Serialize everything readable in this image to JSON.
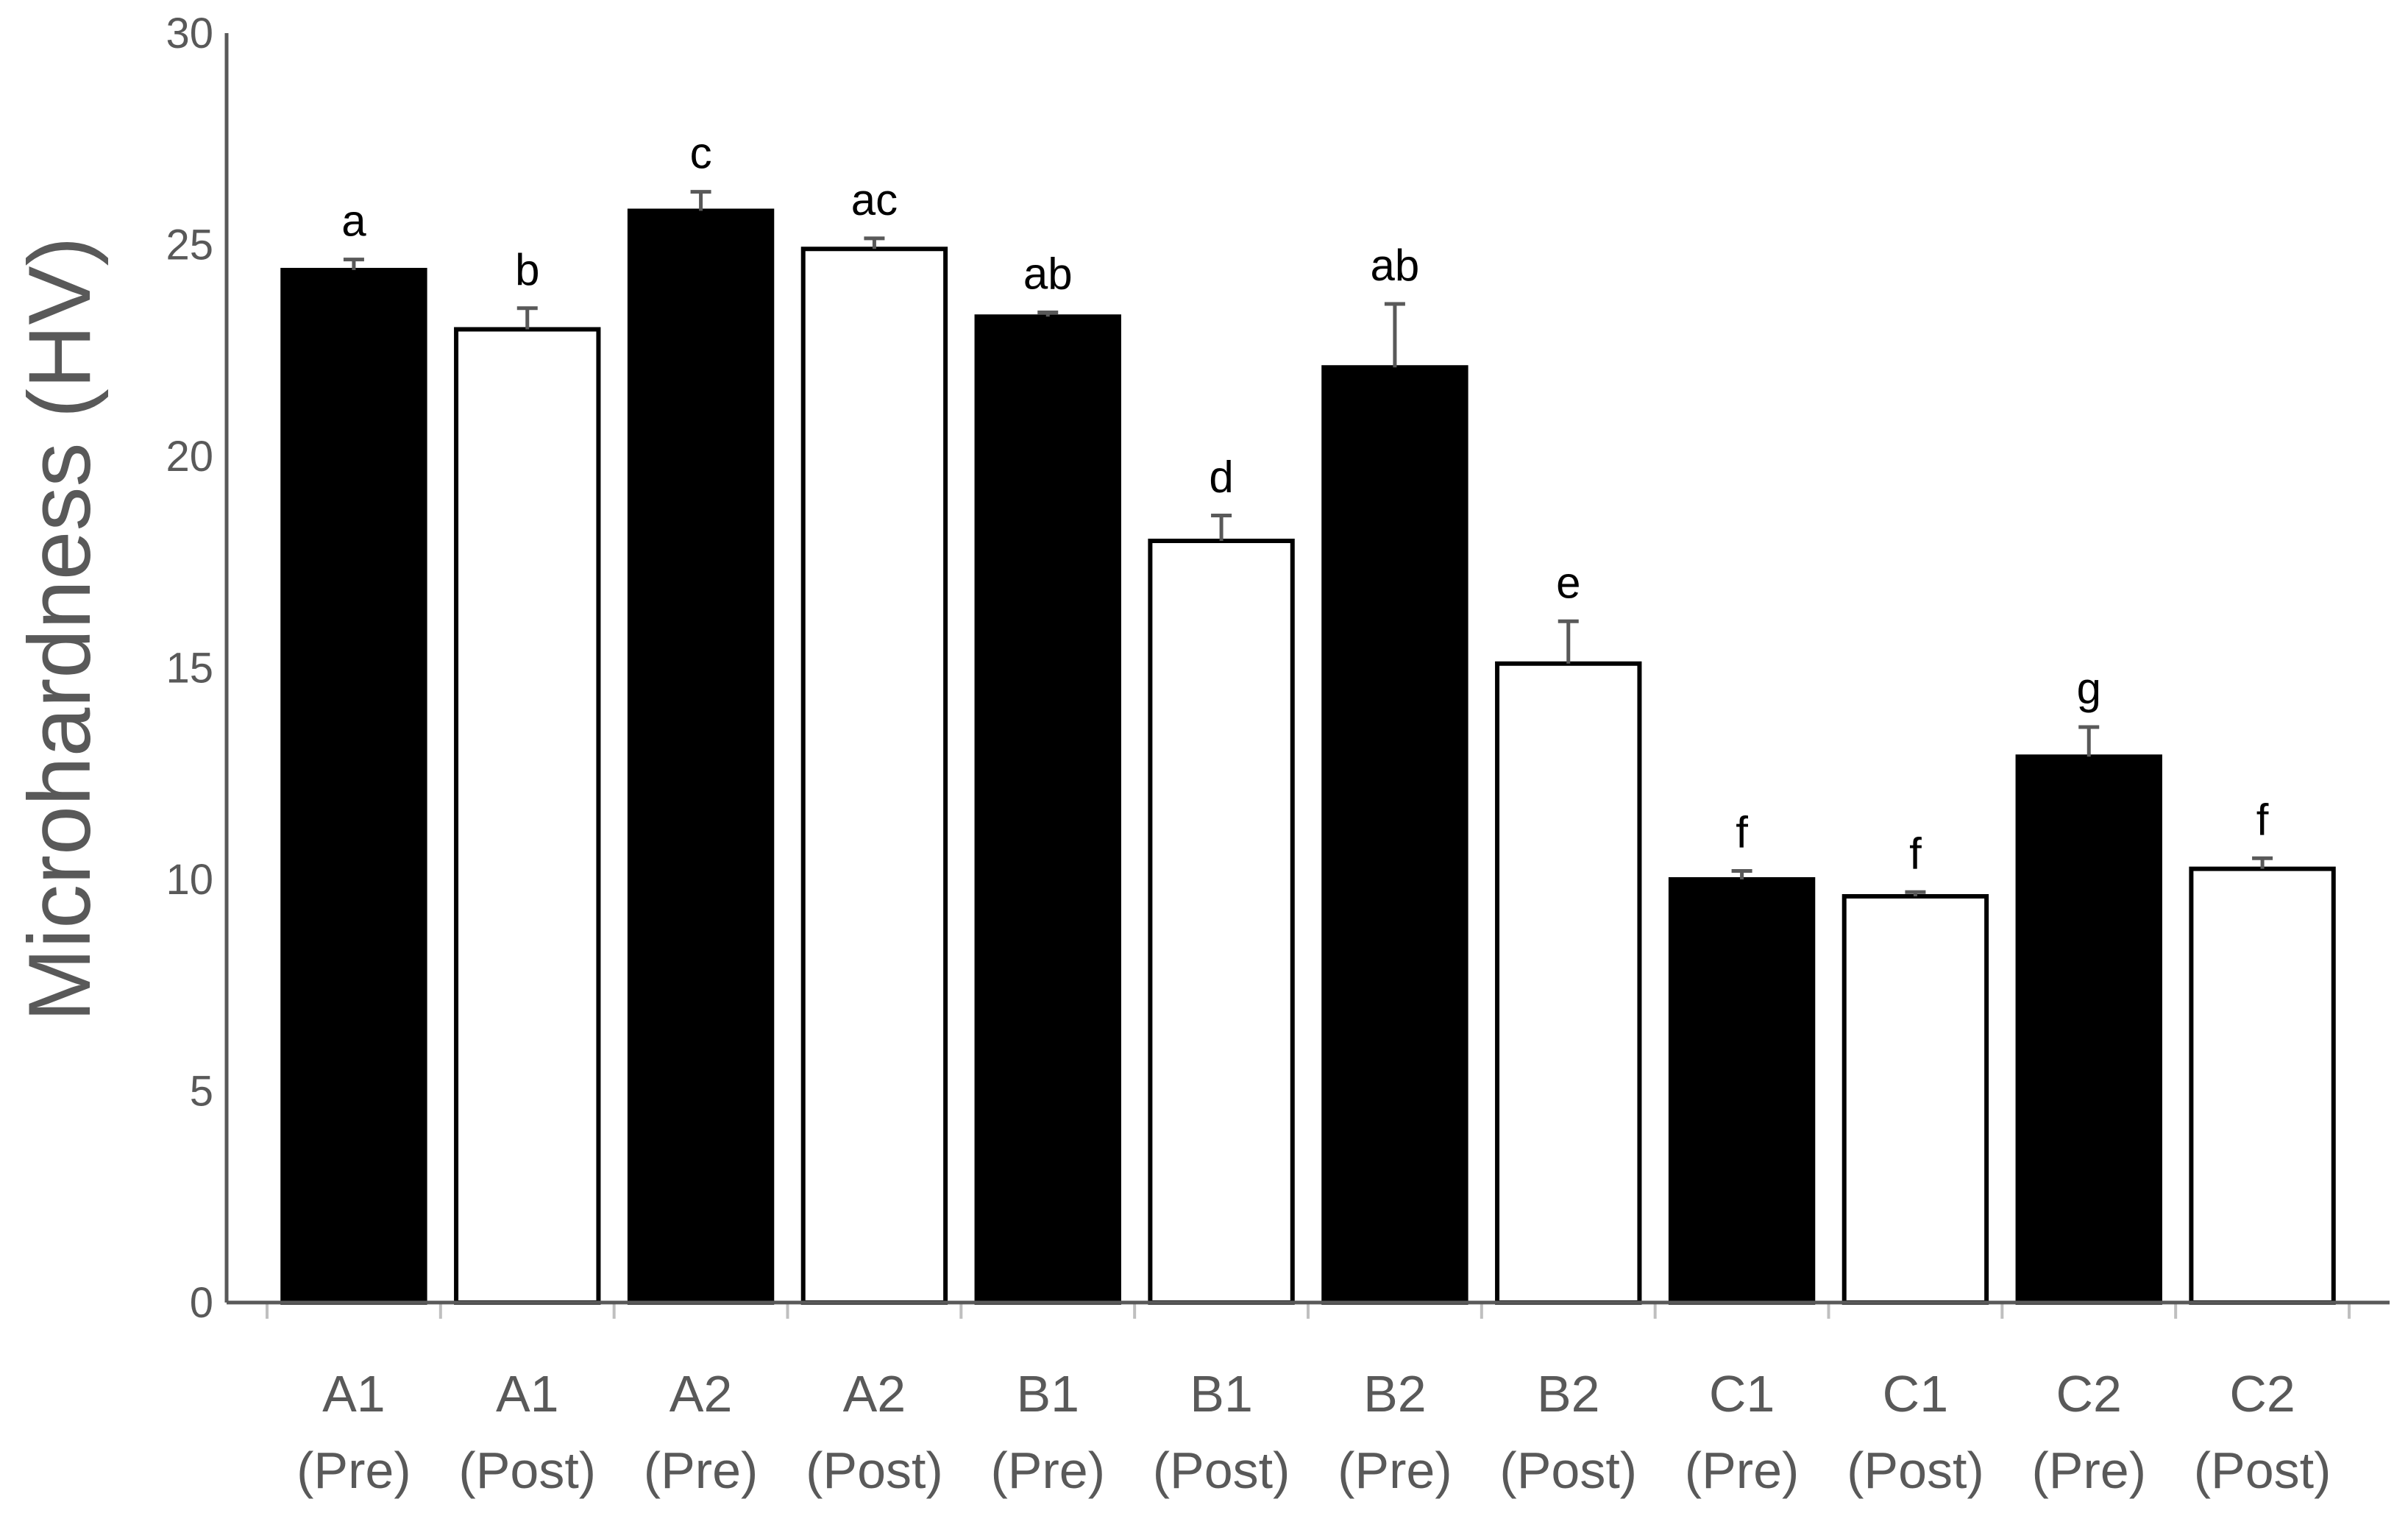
{
  "chart_data": {
    "type": "bar",
    "ylabel": "Microhardness (HV)",
    "xlabel": "",
    "ylim": [
      0,
      30
    ],
    "yticks": [
      0,
      5,
      10,
      15,
      20,
      25,
      30
    ],
    "grid": false,
    "legend": "none",
    "categories": [
      {
        "line1": "A1",
        "line2": "(Pre)"
      },
      {
        "line1": "A1",
        "line2": "(Post)"
      },
      {
        "line1": "A2",
        "line2": "(Pre)"
      },
      {
        "line1": "A2",
        "line2": "(Post)"
      },
      {
        "line1": "B1",
        "line2": "(Pre)"
      },
      {
        "line1": "B1",
        "line2": "(Post)"
      },
      {
        "line1": "B2",
        "line2": "(Pre)"
      },
      {
        "line1": "B2",
        "line2": "(Post)"
      },
      {
        "line1": "C1",
        "line2": "(Pre)"
      },
      {
        "line1": "C1",
        "line2": "(Post)"
      },
      {
        "line1": "C2",
        "line2": "(Pre)"
      },
      {
        "line1": "C2",
        "line2": "(Post)"
      }
    ],
    "values": [
      24.4,
      23.0,
      25.8,
      24.9,
      23.3,
      18.0,
      22.1,
      15.1,
      10.0,
      9.6,
      12.9,
      10.25
    ],
    "errors": [
      0.25,
      0.5,
      0.45,
      0.25,
      0.1,
      0.6,
      1.5,
      1.0,
      0.2,
      0.1,
      0.7,
      0.25
    ],
    "significance_labels": [
      "a",
      "b",
      "c",
      "ac",
      "ab",
      "d",
      "ab",
      "e",
      "f",
      "f",
      "g",
      "f"
    ],
    "fills": [
      "#000000",
      "#ffffff",
      "#000000",
      "#ffffff",
      "#000000",
      "#ffffff",
      "#000000",
      "#ffffff",
      "#000000",
      "#ffffff",
      "#000000",
      "#ffffff"
    ],
    "colors": {
      "axis": "#595959",
      "bar_edge": "#000000",
      "text": "#595959"
    }
  }
}
